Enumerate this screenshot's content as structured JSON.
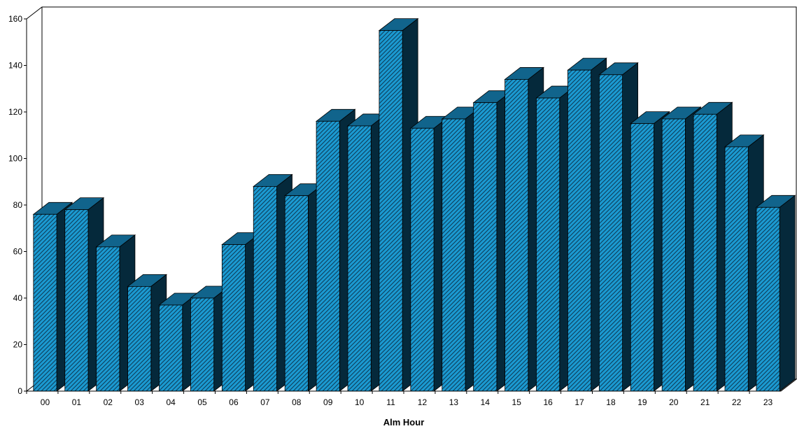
{
  "chart_data": {
    "type": "bar",
    "title": "",
    "xlabel": "Alm Hour",
    "ylabel": "",
    "categories": [
      "00",
      "01",
      "02",
      "03",
      "04",
      "05",
      "06",
      "07",
      "08",
      "09",
      "10",
      "11",
      "12",
      "13",
      "14",
      "15",
      "16",
      "17",
      "18",
      "19",
      "20",
      "21",
      "22",
      "23"
    ],
    "values": [
      76,
      78,
      62,
      45,
      37,
      40,
      63,
      88,
      84,
      116,
      114,
      155,
      113,
      117,
      124,
      134,
      126,
      138,
      136,
      115,
      117,
      119,
      105,
      79
    ],
    "ylim": [
      0,
      160
    ],
    "yticks": [
      0,
      20,
      40,
      60,
      80,
      100,
      120,
      140,
      160
    ],
    "grid": false,
    "legend": "none",
    "style": "3d-hatched",
    "colors": {
      "bar_front": "#1b9ad1",
      "bar_hatch": "#0d3d5a",
      "bar_top": "#11648c",
      "bar_side": "#05293b",
      "axis": "#000000"
    }
  }
}
